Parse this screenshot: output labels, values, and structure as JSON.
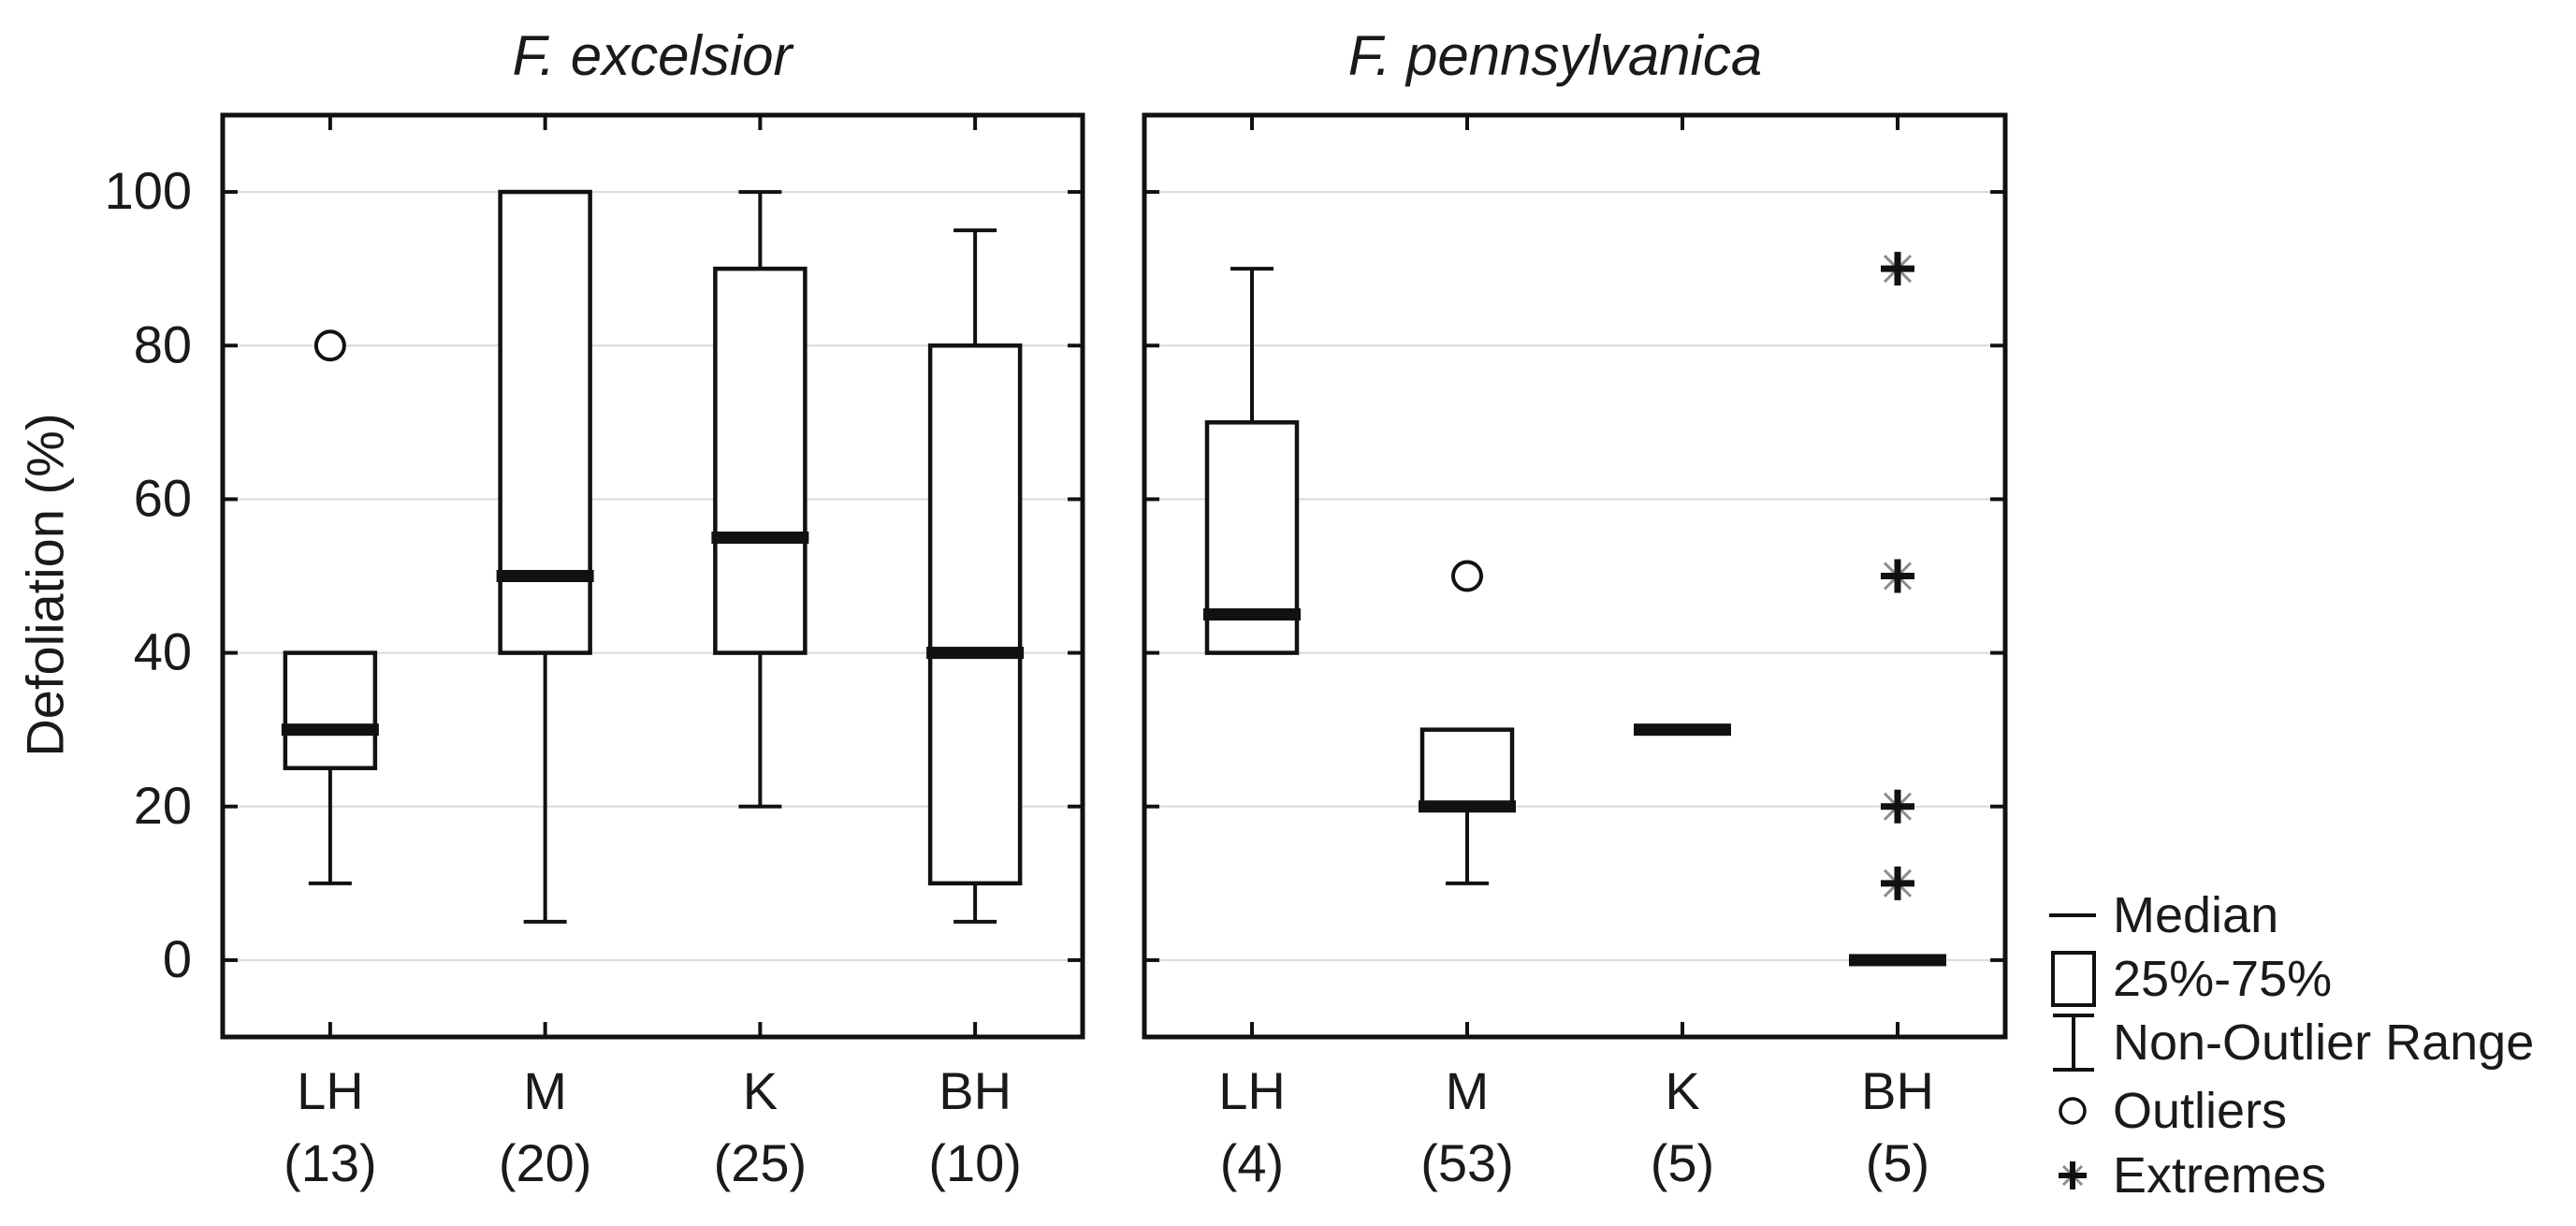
{
  "chart_data": {
    "type": "boxplot",
    "ylabel": "Defoliation (%)",
    "ylim": [
      -10,
      110
    ],
    "yticks": [
      0,
      20,
      40,
      60,
      80,
      100
    ],
    "grid": "horizontal",
    "legend_position": "bottom-right",
    "panels": [
      {
        "title": "F. excelsior",
        "categories": [
          "LH",
          "M",
          "K",
          "BH"
        ],
        "count_labels": [
          "(13)",
          "(20)",
          "(25)",
          "(10)"
        ],
        "boxes": [
          {
            "label": "LH",
            "count_label": "(13)",
            "median": 30,
            "q1": 25,
            "q3": 40,
            "whisker_low": 10,
            "whisker_high": null,
            "outliers": [
              80
            ],
            "extremes": []
          },
          {
            "label": "M",
            "count_label": "(20)",
            "median": 50,
            "q1": 40,
            "q3": 100,
            "whisker_low": 5,
            "whisker_high": null,
            "outliers": [],
            "extremes": []
          },
          {
            "label": "K",
            "count_label": "(25)",
            "median": 55,
            "q1": 40,
            "q3": 90,
            "whisker_low": 20,
            "whisker_high": 100,
            "outliers": [],
            "extremes": []
          },
          {
            "label": "BH",
            "count_label": "(10)",
            "median": 40,
            "q1": 10,
            "q3": 80,
            "whisker_low": 5,
            "whisker_high": 95,
            "outliers": [],
            "extremes": []
          }
        ]
      },
      {
        "title": "F. pennsylvanica",
        "categories": [
          "LH",
          "M",
          "K",
          "BH"
        ],
        "count_labels": [
          "(4)",
          "(53)",
          "(5)",
          "(5)"
        ],
        "boxes": [
          {
            "label": "LH",
            "count_label": "(4)",
            "median": 45,
            "q1": 40,
            "q3": 70,
            "whisker_low": null,
            "whisker_high": 90,
            "outliers": [],
            "extremes": []
          },
          {
            "label": "M",
            "count_label": "(53)",
            "median": 20,
            "q1": 20,
            "q3": 30,
            "whisker_low": 10,
            "whisker_high": null,
            "outliers": [
              50
            ],
            "extremes": []
          },
          {
            "label": "K",
            "count_label": "(5)",
            "median": 30,
            "q1": null,
            "q3": null,
            "whisker_low": null,
            "whisker_high": null,
            "outliers": [],
            "extremes": []
          },
          {
            "label": "BH",
            "count_label": "(5)",
            "median": 0,
            "q1": null,
            "q3": null,
            "whisker_low": null,
            "whisker_high": null,
            "outliers": [],
            "extremes": [
              10,
              20,
              50,
              90
            ]
          }
        ]
      }
    ],
    "legend": {
      "items": [
        {
          "symbol": "median-line",
          "label": "Median"
        },
        {
          "symbol": "box",
          "label": "25%-75%"
        },
        {
          "symbol": "whisker-range",
          "label": "Non-Outlier Range"
        },
        {
          "symbol": "circle",
          "label": "Outliers"
        },
        {
          "symbol": "asterisk",
          "label": "Extremes"
        }
      ]
    },
    "colors": {
      "line": "#111111",
      "text": "#1a1a1a",
      "gridline": "#d9d9d9",
      "extreme_diagonals": "#8c8c8c",
      "background": "#ffffff"
    }
  }
}
